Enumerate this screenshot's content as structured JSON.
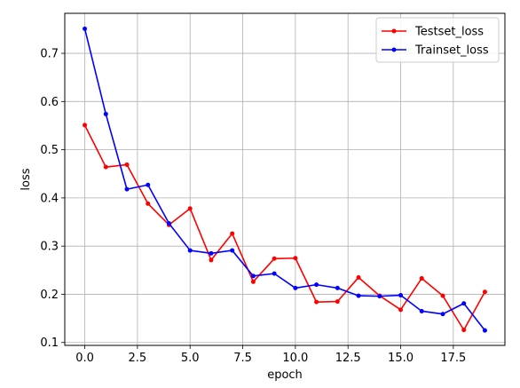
{
  "chart_data": {
    "type": "line",
    "title": "",
    "xlabel": "epoch",
    "ylabel": "loss",
    "xlim": [
      -0.95,
      19.95
    ],
    "ylim": [
      0.094,
      0.783
    ],
    "xticks": [
      0.0,
      2.5,
      5.0,
      7.5,
      10.0,
      12.5,
      15.0,
      17.5
    ],
    "xtick_labels": [
      "0.0",
      "2.5",
      "5.0",
      "7.5",
      "10.0",
      "12.5",
      "15.0",
      "17.5"
    ],
    "yticks": [
      0.1,
      0.2,
      0.3,
      0.4,
      0.5,
      0.6,
      0.7
    ],
    "ytick_labels": [
      "0.1",
      "0.2",
      "0.3",
      "0.4",
      "0.5",
      "0.6",
      "0.7"
    ],
    "grid": true,
    "legend_position": "top-right",
    "x": [
      0,
      1,
      2,
      3,
      4,
      5,
      6,
      7,
      8,
      9,
      10,
      11,
      12,
      13,
      14,
      15,
      16,
      17,
      18,
      19
    ],
    "series": [
      {
        "name": "Testset_loss",
        "color": "#ff0000",
        "values": [
          0.551,
          0.464,
          0.469,
          0.388,
          0.344,
          0.378,
          0.271,
          0.326,
          0.226,
          0.274,
          0.275,
          0.184,
          0.185,
          0.235,
          0.197,
          0.168,
          0.233,
          0.197,
          0.126,
          0.205
        ]
      },
      {
        "name": "Trainset_loss",
        "color": "#0000ff",
        "values": [
          0.751,
          0.574,
          0.418,
          0.427,
          0.347,
          0.291,
          0.285,
          0.291,
          0.238,
          0.243,
          0.213,
          0.22,
          0.213,
          0.197,
          0.196,
          0.198,
          0.165,
          0.159,
          0.181,
          0.125
        ]
      }
    ]
  }
}
